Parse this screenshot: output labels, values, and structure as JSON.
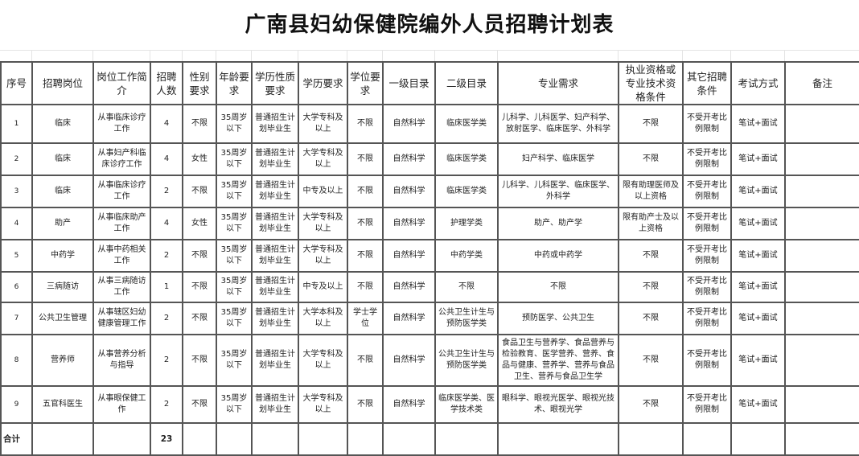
{
  "title": "广南县妇幼保健院编外人员招聘计划表",
  "headers": [
    "序号",
    "招聘岗位",
    "岗位工作简介",
    "招聘人数",
    "性别要求",
    "年龄要求",
    "学历性质要求",
    "学历要求",
    "学位要求",
    "一级目录",
    "二级目录",
    "专业需求",
    "执业资格或专业技术资格条件",
    "其它招聘条件",
    "考试方式",
    "备注"
  ],
  "rows": [
    [
      "1",
      "临床",
      "从事临床诊疗工作",
      "4",
      "不限",
      "35周岁以下",
      "普通招生计划毕业生",
      "大学专科及以上",
      "不限",
      "自然科学",
      "临床医学类",
      "儿科学、儿科医学、妇产科学、放射医学、临床医学、外科学",
      "不限",
      "不受开考比例限制",
      "笔试+面试",
      ""
    ],
    [
      "2",
      "临床",
      "从事妇产科临床诊疗工作",
      "4",
      "女性",
      "35周岁以下",
      "普通招生计划毕业生",
      "大学专科及以上",
      "不限",
      "自然科学",
      "临床医学类",
      "妇产科学、临床医学",
      "不限",
      "不受开考比例限制",
      "笔试+面试",
      ""
    ],
    [
      "3",
      "临床",
      "从事临床诊疗工作",
      "2",
      "不限",
      "35周岁以下",
      "普通招生计划毕业生",
      "中专及以上",
      "不限",
      "自然科学",
      "临床医学类",
      "儿科学、儿科医学、临床医学、外科学",
      "限有助理医师及以上资格",
      "不受开考比例限制",
      "笔试+面试",
      ""
    ],
    [
      "4",
      "助产",
      "从事临床助产工作",
      "4",
      "女性",
      "35周岁以下",
      "普通招生计划毕业生",
      "大学专科及以上",
      "不限",
      "自然科学",
      "护理学类",
      "助产、助产学",
      "限有助产士及以上资格",
      "不受开考比例限制",
      "笔试+面试",
      ""
    ],
    [
      "5",
      "中药学",
      "从事中药相关工作",
      "2",
      "不限",
      "35周岁以下",
      "普通招生计划毕业生",
      "大学专科及以上",
      "不限",
      "自然科学",
      "中药学类",
      "中药或中药学",
      "不限",
      "不受开考比例限制",
      "笔试+面试",
      ""
    ],
    [
      "6",
      "三病随访",
      "从事三病随访工作",
      "1",
      "不限",
      "35周岁以下",
      "普通招生计划毕业生",
      "中专及以上",
      "不限",
      "自然科学",
      "不限",
      "不限",
      "不限",
      "不受开考比例限制",
      "笔试+面试",
      ""
    ],
    [
      "7",
      "公共卫生管理",
      "从事辖区妇幼健康管理工作",
      "2",
      "不限",
      "35周岁以下",
      "普通招生计划毕业生",
      "大学本科及以上",
      "学士学位",
      "自然科学",
      "公共卫生计生与预防医学类",
      "预防医学、公共卫生",
      "不限",
      "不受开考比例限制",
      "笔试+面试",
      ""
    ],
    [
      "8",
      "营养师",
      "从事营养分析与指导",
      "2",
      "不限",
      "35周岁以下",
      "普通招生计划毕业生",
      "大学专科及以上",
      "不限",
      "自然科学",
      "公共卫生计生与预防医学类",
      "食品卫生与营养学、食品营养与检验教育、医学营养、营养、食品与健康、营养学、营养与食品卫生、营养与食品卫生学",
      "不限",
      "不受开考比例限制",
      "笔试+面试",
      ""
    ],
    [
      "9",
      "五官科医生",
      "从事眼保健工作",
      "2",
      "不限",
      "35周岁以下",
      "普通招生计划毕业生",
      "大学专科及以上",
      "不限",
      "自然科学",
      "临床医学类、医学技术类",
      "眼科学、眼视光医学、眼视光技术、眼视光学",
      "不限",
      "不受开考比例限制",
      "笔试+面试",
      ""
    ]
  ],
  "total": {
    "label": "合计",
    "count": "23"
  }
}
